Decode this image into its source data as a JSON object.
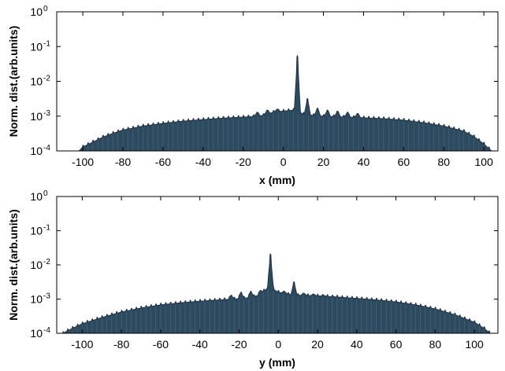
{
  "chart_data": [
    {
      "type": "area",
      "xlabel": "x (mm)",
      "ylabel": "Norm. dist.(arb.units)",
      "xlim": [
        -113,
        107
      ],
      "ylim": [
        0.0001,
        1
      ],
      "yscale": "log",
      "xticks": [
        -100,
        -80,
        -60,
        -40,
        -20,
        0,
        20,
        40,
        60,
        80,
        100
      ],
      "yticks": [
        {
          "base": "10",
          "exp": "-4",
          "value": 0.0001
        },
        {
          "base": "10",
          "exp": "-3",
          "value": 0.001
        },
        {
          "base": "10",
          "exp": "-2",
          "value": 0.01
        },
        {
          "base": "10",
          "exp": "-1",
          "value": 0.1
        },
        {
          "base": "10",
          "exp": "0",
          "value": 1
        }
      ],
      "fill_color": "#2e4a5e",
      "line_color": "#1b2a3a",
      "envelope": [
        [
          -102,
          0.0001
        ],
        [
          -100,
          0.00013
        ],
        [
          -95,
          0.00018
        ],
        [
          -90,
          0.00025
        ],
        [
          -85,
          0.00032
        ],
        [
          -80,
          0.0004
        ],
        [
          -70,
          0.00052
        ],
        [
          -60,
          0.00062
        ],
        [
          -50,
          0.00072
        ],
        [
          -40,
          0.0008
        ],
        [
          -30,
          0.00088
        ],
        [
          -20,
          0.00094
        ],
        [
          -15,
          0.00098
        ],
        [
          -10,
          0.00105
        ],
        [
          -5,
          0.0013
        ],
        [
          0,
          0.0014
        ],
        [
          5,
          0.0015
        ],
        [
          10,
          0.00115
        ],
        [
          15,
          0.00105
        ],
        [
          20,
          0.001
        ],
        [
          30,
          0.00095
        ],
        [
          40,
          0.0009
        ],
        [
          50,
          0.00085
        ],
        [
          60,
          0.00077
        ],
        [
          70,
          0.00065
        ],
        [
          80,
          0.00052
        ],
        [
          90,
          0.00037
        ],
        [
          95,
          0.00026
        ],
        [
          100,
          0.00016
        ],
        [
          103,
          0.00011
        ],
        [
          104,
          0.0001
        ]
      ],
      "peaks": [
        [
          7,
          0.055
        ],
        [
          12,
          0.0032
        ],
        [
          -8,
          0.0015
        ],
        [
          -3,
          0.0016
        ],
        [
          17,
          0.0017
        ],
        [
          22,
          0.0015
        ],
        [
          27,
          0.0014
        ],
        [
          32,
          0.0013
        ],
        [
          -13,
          0.0013
        ],
        [
          37,
          0.0012
        ]
      ]
    },
    {
      "type": "area",
      "xlabel": "y (mm)",
      "ylabel": "Norm. dist.(arb.units)",
      "xlim": [
        -113,
        112
      ],
      "ylim": [
        0.0001,
        1
      ],
      "yscale": "log",
      "xticks": [
        -100,
        -80,
        -60,
        -40,
        -20,
        0,
        20,
        40,
        60,
        80,
        100
      ],
      "yticks": [
        {
          "base": "10",
          "exp": "-4",
          "value": 0.0001
        },
        {
          "base": "10",
          "exp": "-3",
          "value": 0.001
        },
        {
          "base": "10",
          "exp": "-2",
          "value": 0.01
        },
        {
          "base": "10",
          "exp": "-1",
          "value": 0.1
        },
        {
          "base": "10",
          "exp": "0",
          "value": 1
        }
      ],
      "fill_color": "#2e4a5e",
      "line_color": "#1b2a3a",
      "envelope": [
        [
          -110,
          0.0001
        ],
        [
          -105,
          0.00014
        ],
        [
          -100,
          0.00019
        ],
        [
          -90,
          0.00029
        ],
        [
          -80,
          0.00042
        ],
        [
          -70,
          0.00055
        ],
        [
          -60,
          0.00068
        ],
        [
          -50,
          0.00078
        ],
        [
          -40,
          0.00087
        ],
        [
          -30,
          0.00095
        ],
        [
          -20,
          0.00103
        ],
        [
          -15,
          0.0011
        ],
        [
          -10,
          0.0013
        ],
        [
          -5,
          0.0022
        ],
        [
          -3,
          0.002
        ],
        [
          0,
          0.0016
        ],
        [
          5,
          0.0014
        ],
        [
          10,
          0.0013
        ],
        [
          20,
          0.00125
        ],
        [
          30,
          0.00115
        ],
        [
          40,
          0.00105
        ],
        [
          50,
          0.00095
        ],
        [
          60,
          0.00083
        ],
        [
          70,
          0.00068
        ],
        [
          80,
          0.00052
        ],
        [
          90,
          0.00035
        ],
        [
          100,
          0.00021
        ],
        [
          105,
          0.00014
        ],
        [
          108,
          0.0001
        ]
      ],
      "peaks": [
        [
          -4,
          0.021
        ],
        [
          8,
          0.0032
        ],
        [
          -9,
          0.0018
        ],
        [
          -14,
          0.0017
        ],
        [
          -19,
          0.0016
        ],
        [
          3,
          0.0017
        ],
        [
          13,
          0.0015
        ],
        [
          18,
          0.0014
        ],
        [
          23,
          0.0013
        ],
        [
          -24,
          0.0013
        ],
        [
          28,
          0.0012
        ]
      ]
    }
  ]
}
